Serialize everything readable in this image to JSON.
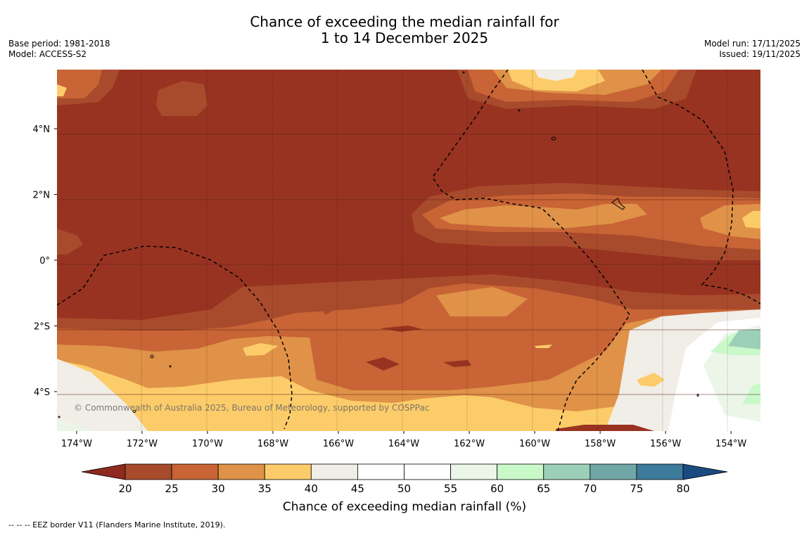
{
  "title": {
    "line1": "Chance of exceeding the median rainfall for",
    "line2": "1 to 14 December 2025"
  },
  "left_meta": {
    "base_period": "Base period: 1981-2018",
    "model": "Model: ACCESS-S2"
  },
  "right_meta": {
    "model_run": "Model run: 17/11/2025",
    "issued": "Issued: 19/11/2025"
  },
  "map": {
    "lon_range": [
      -174.6,
      -153.1
    ],
    "lat_range": [
      -5.2,
      5.8
    ],
    "lon_ticks": [
      {
        "value": -174,
        "label": "174°W"
      },
      {
        "value": -172,
        "label": "172°W"
      },
      {
        "value": -170,
        "label": "170°W"
      },
      {
        "value": -168,
        "label": "168°W"
      },
      {
        "value": -166,
        "label": "166°W"
      },
      {
        "value": -164,
        "label": "164°W"
      },
      {
        "value": -162,
        "label": "162°W"
      },
      {
        "value": -160,
        "label": "160°W"
      },
      {
        "value": -158,
        "label": "158°W"
      },
      {
        "value": -156,
        "label": "156°W"
      },
      {
        "value": -154,
        "label": "154°W"
      }
    ],
    "lat_ticks": [
      {
        "value": 4,
        "label": "4°N"
      },
      {
        "value": 2,
        "label": "2°N"
      },
      {
        "value": 0,
        "label": "0°"
      },
      {
        "value": -2,
        "label": "2°S"
      },
      {
        "value": -4,
        "label": "4°S"
      }
    ],
    "copyright": "© Commonwealth of Australia 2025, Bureau of Meteorology, supported by COSPPac"
  },
  "colorbar": {
    "label": "Chance of exceeding median rainfall (%)",
    "ticks": [
      "20",
      "25",
      "30",
      "35",
      "40",
      "45",
      "50",
      "55",
      "60",
      "65",
      "70",
      "75",
      "80"
    ],
    "under_color": "#8e2a1e",
    "over_color": "#1a4a80",
    "colors": [
      "#a84b2c",
      "#c86435",
      "#df9248",
      "#fdcc6a",
      "#f1ede7",
      "#ffffff",
      "#ffffff",
      "#ebf6e9",
      "#caf9c9",
      "#9ccfb8",
      "#71a7a7",
      "#3d7b9c"
    ]
  },
  "footnote": "--  --  -- EEZ border V11 (Flanders Marine Institute, 2019)."
}
